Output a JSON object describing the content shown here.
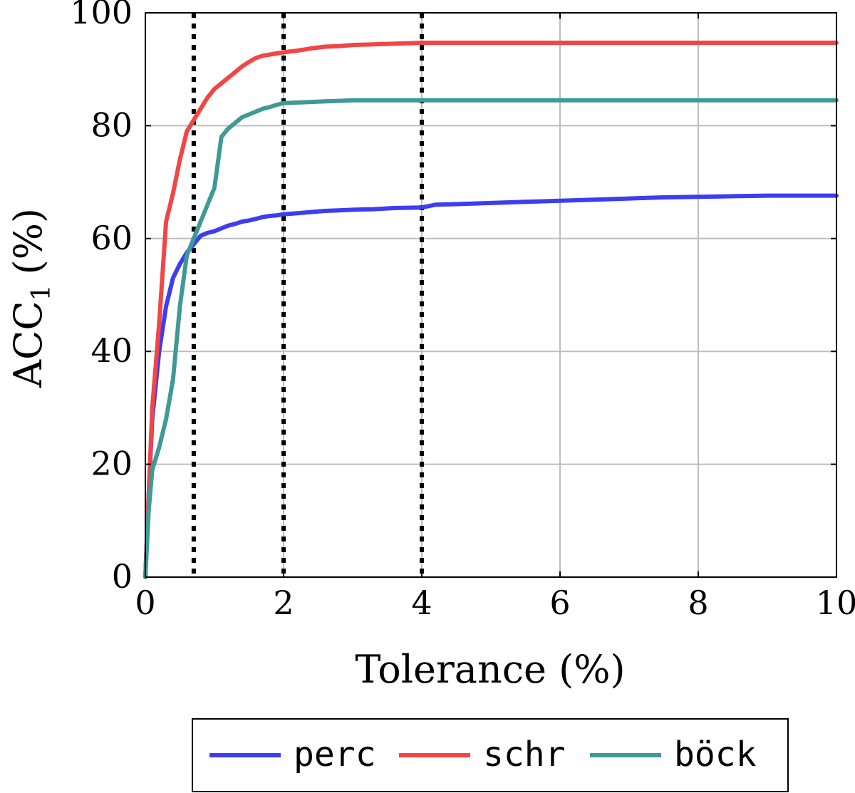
{
  "chart_data": {
    "type": "line",
    "title": "",
    "xlabel": "Tolerance (%)",
    "ylabel_main": "ACC",
    "ylabel_sub": "1",
    "ylabel_unit": "(%)",
    "xlim": [
      0,
      10
    ],
    "ylim": [
      0,
      100
    ],
    "xticks": [
      0,
      2,
      4,
      6,
      8,
      10
    ],
    "yticks": [
      0,
      20,
      40,
      60,
      80,
      100
    ],
    "grid": true,
    "legend_position": "bottom-center",
    "vlines": [
      0.7,
      2,
      4
    ],
    "series": [
      {
        "name": "perc",
        "color": "#3d3df2",
        "x": [
          0,
          0.05,
          0.1,
          0.2,
          0.3,
          0.4,
          0.5,
          0.6,
          0.7,
          0.8,
          0.9,
          1.0,
          1.1,
          1.2,
          1.3,
          1.4,
          1.5,
          1.6,
          1.7,
          1.8,
          1.9,
          2.0,
          2.2,
          2.4,
          2.6,
          2.8,
          3.0,
          3.3,
          3.6,
          4.0,
          4.2,
          4.5,
          5.0,
          5.5,
          6.0,
          6.5,
          7.0,
          7.5,
          8.0,
          8.5,
          9.0,
          10.0
        ],
        "values": [
          0,
          15,
          28,
          40,
          48,
          53,
          55.5,
          57.5,
          59,
          60.5,
          61,
          61.3,
          61.8,
          62.3,
          62.6,
          63,
          63.2,
          63.5,
          63.8,
          64,
          64.1,
          64.3,
          64.5,
          64.7,
          64.9,
          65,
          65.1,
          65.2,
          65.4,
          65.5,
          66,
          66.1,
          66.3,
          66.5,
          66.7,
          66.9,
          67.1,
          67.3,
          67.4,
          67.5,
          67.6,
          67.6
        ]
      },
      {
        "name": "schr",
        "color": "#f24545",
        "x": [
          0,
          0.1,
          0.2,
          0.3,
          0.4,
          0.5,
          0.6,
          0.7,
          0.8,
          0.9,
          1.0,
          1.1,
          1.2,
          1.3,
          1.4,
          1.5,
          1.6,
          1.7,
          1.8,
          1.9,
          2.0,
          2.2,
          2.4,
          2.6,
          2.8,
          3.0,
          3.5,
          3.8,
          4.0,
          10.0
        ],
        "values": [
          0,
          30,
          45,
          63,
          68,
          74,
          79,
          81,
          83,
          85,
          86.5,
          87.5,
          88.5,
          89.5,
          90.5,
          91.3,
          92,
          92.4,
          92.6,
          92.8,
          93,
          93.3,
          93.7,
          94,
          94.1,
          94.3,
          94.5,
          94.6,
          94.7,
          94.7
        ]
      },
      {
        "name": "böck",
        "color": "#3f9a96",
        "x": [
          0,
          0.05,
          0.1,
          0.2,
          0.3,
          0.4,
          0.5,
          0.6,
          0.7,
          0.8,
          0.9,
          1.0,
          1.1,
          1.2,
          1.3,
          1.4,
          1.5,
          1.6,
          1.7,
          1.8,
          1.9,
          2.0,
          2.2,
          2.4,
          2.6,
          2.8,
          3.0,
          4.0,
          10.0
        ],
        "values": [
          0,
          12,
          19,
          23,
          28,
          35,
          48,
          57,
          60,
          63,
          66,
          69,
          78,
          79.5,
          80.5,
          81.5,
          82,
          82.5,
          83,
          83.3,
          83.7,
          84,
          84.1,
          84.2,
          84.3,
          84.4,
          84.5,
          84.5,
          84.5
        ]
      }
    ]
  }
}
